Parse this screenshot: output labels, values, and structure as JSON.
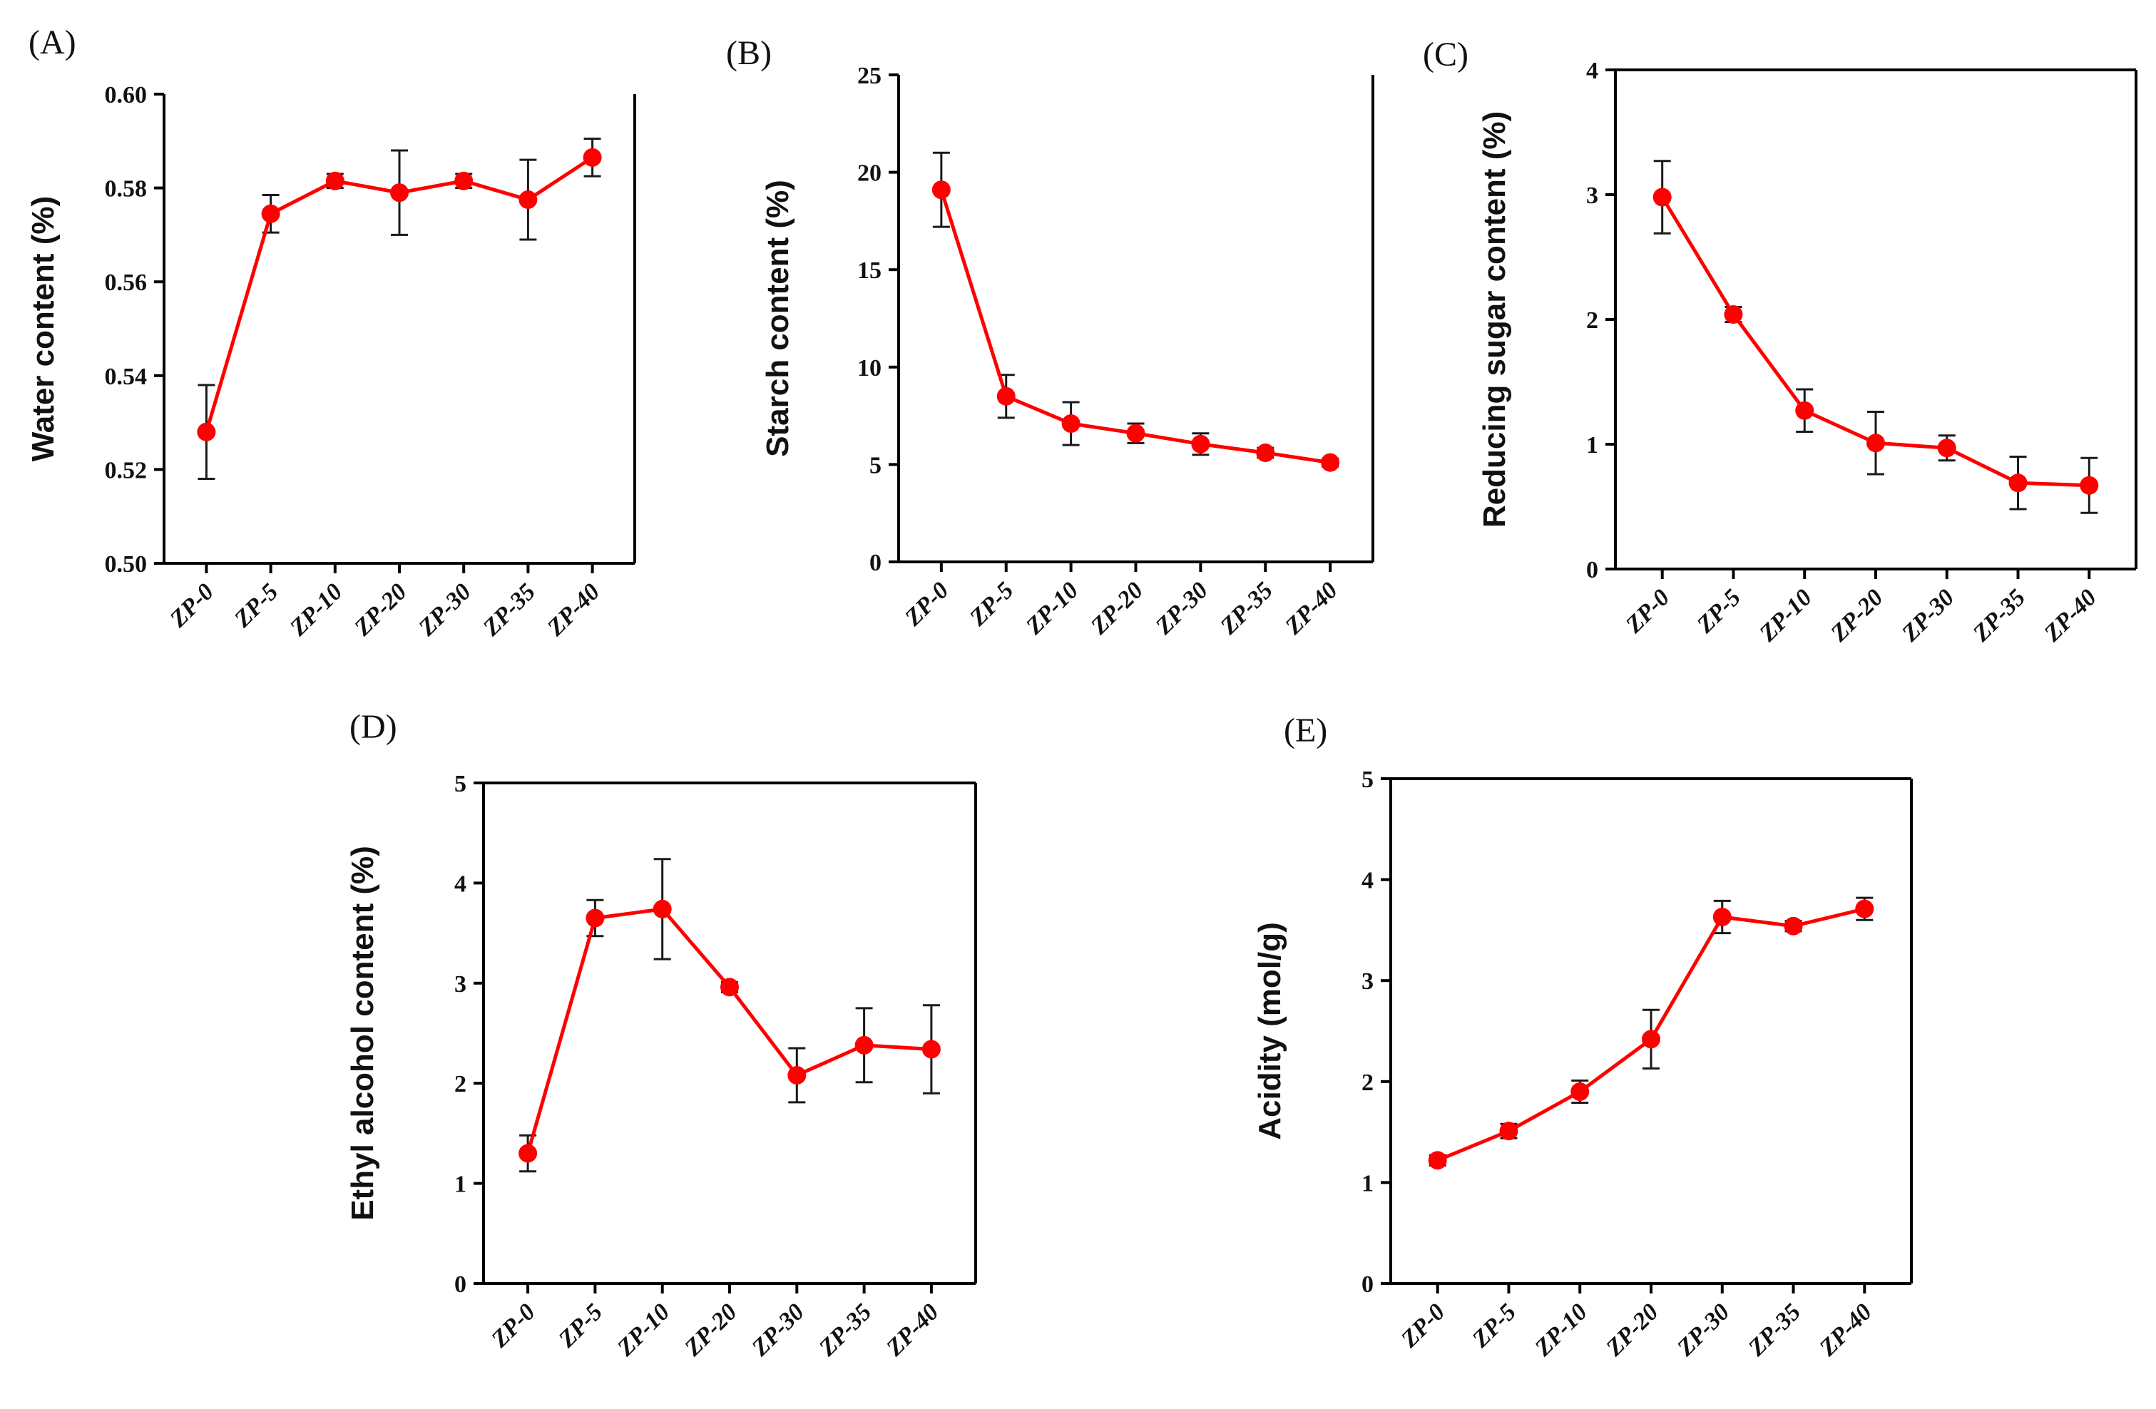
{
  "colors": {
    "series": "#ff0000",
    "axis": "#000000",
    "errorbar": "#1a1a1a"
  },
  "chart_data": [
    {
      "type": "line",
      "panel_label": "(A)",
      "categories": [
        "ZP-0",
        "ZP-5",
        "ZP-10",
        "ZP-20",
        "ZP-30",
        "ZP-35",
        "ZP-40"
      ],
      "values": [
        0.528,
        0.5745,
        0.5815,
        0.579,
        0.5815,
        0.5775,
        0.5865
      ],
      "errors": [
        0.01,
        0.004,
        0.0015,
        0.009,
        0.0015,
        0.0085,
        0.004
      ],
      "ylabel": "Water content (%)",
      "xlabel": "",
      "ylim": [
        0.5,
        0.6
      ],
      "yticks": [
        "0.50",
        "0.52",
        "0.54",
        "0.56",
        "0.58",
        "0.60"
      ]
    },
    {
      "type": "line",
      "panel_label": "(B)",
      "categories": [
        "ZP-0",
        "ZP-5",
        "ZP-10",
        "ZP-20",
        "ZP-30",
        "ZP-35",
        "ZP-40"
      ],
      "values": [
        19.1,
        8.5,
        7.1,
        6.6,
        6.05,
        5.6,
        5.1
      ],
      "errors": [
        1.9,
        1.1,
        1.1,
        0.5,
        0.55,
        0.25,
        0.2
      ],
      "ylabel": "Starch content (%)",
      "xlabel": "",
      "ylim": [
        0,
        25
      ],
      "yticks": [
        "0",
        "5",
        "10",
        "15",
        "20",
        "25"
      ]
    },
    {
      "type": "line",
      "panel_label": "(C)",
      "categories": [
        "ZP-0",
        "ZP-5",
        "ZP-10",
        "ZP-20",
        "ZP-30",
        "ZP-35",
        "ZP-40"
      ],
      "values": [
        2.98,
        2.04,
        1.27,
        1.01,
        0.97,
        0.69,
        0.67
      ],
      "errors": [
        0.29,
        0.06,
        0.17,
        0.25,
        0.1,
        0.21,
        0.22
      ],
      "ylabel": "Reducing sugar content (%)",
      "xlabel": "",
      "ylim": [
        0,
        4
      ],
      "yticks": [
        "0",
        "1",
        "2",
        "3",
        "4"
      ]
    },
    {
      "type": "line",
      "panel_label": "(D)",
      "categories": [
        "ZP-0",
        "ZP-5",
        "ZP-10",
        "ZP-20",
        "ZP-30",
        "ZP-35",
        "ZP-40"
      ],
      "values": [
        1.3,
        3.65,
        3.74,
        2.96,
        2.08,
        2.38,
        2.34
      ],
      "errors": [
        0.18,
        0.18,
        0.5,
        0.05,
        0.27,
        0.37,
        0.44
      ],
      "ylabel": "Ethyl alcohol content (%)",
      "xlabel": "",
      "ylim": [
        0,
        5
      ],
      "yticks": [
        "0",
        "1",
        "2",
        "3",
        "4",
        "5"
      ]
    },
    {
      "type": "line",
      "panel_label": "(E)",
      "categories": [
        "ZP-0",
        "ZP-5",
        "ZP-10",
        "ZP-20",
        "ZP-30",
        "ZP-35",
        "ZP-40"
      ],
      "values": [
        1.22,
        1.51,
        1.9,
        2.42,
        3.63,
        3.54,
        3.71
      ],
      "errors": [
        0.05,
        0.07,
        0.11,
        0.29,
        0.16,
        0.05,
        0.11
      ],
      "ylabel": "Acidity (mol/g)",
      "xlabel": "",
      "ylim": [
        0,
        5
      ],
      "yticks": [
        "0",
        "1",
        "2",
        "3",
        "4",
        "5"
      ]
    }
  ]
}
